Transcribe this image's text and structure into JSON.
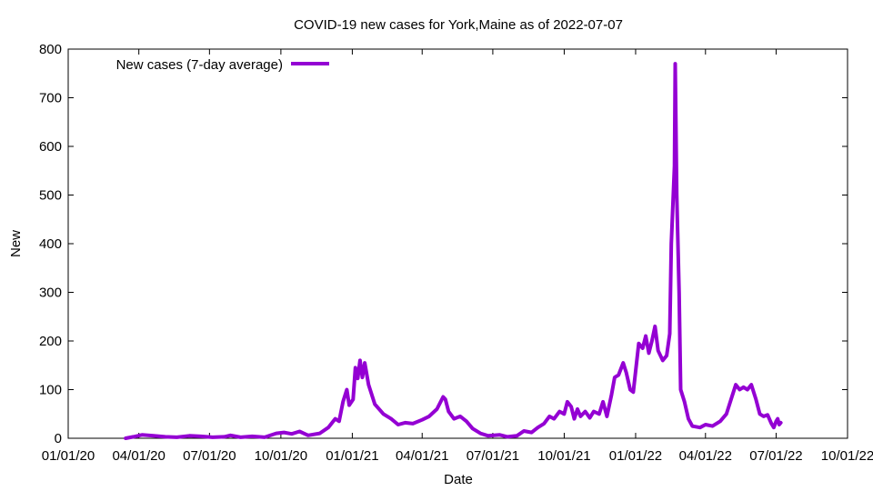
{
  "chart_data": {
    "type": "line",
    "title": "COVID-19 new cases for York,Maine as of 2022-07-07",
    "xlabel": "Date",
    "ylabel": "New",
    "xlim": [
      "2020-01-01",
      "2022-10-01"
    ],
    "ylim": [
      0,
      800
    ],
    "x_ticks": [
      "01/01/20",
      "04/01/20",
      "07/01/20",
      "10/01/20",
      "01/01/21",
      "04/01/21",
      "07/01/21",
      "10/01/21",
      "01/01/22",
      "04/01/22",
      "07/01/22",
      "10/01/22"
    ],
    "y_ticks": [
      0,
      100,
      200,
      300,
      400,
      500,
      600,
      700,
      800
    ],
    "grid": false,
    "legend_position": "top-left",
    "series": [
      {
        "name": "New cases (7-day average)",
        "color": "#9400d3",
        "points": [
          [
            "2020-03-15",
            0
          ],
          [
            "2020-03-25",
            3
          ],
          [
            "2020-04-05",
            7
          ],
          [
            "2020-04-20",
            5
          ],
          [
            "2020-05-05",
            3
          ],
          [
            "2020-05-20",
            2
          ],
          [
            "2020-06-05",
            5
          ],
          [
            "2020-06-20",
            4
          ],
          [
            "2020-07-05",
            2
          ],
          [
            "2020-07-20",
            3
          ],
          [
            "2020-07-28",
            6
          ],
          [
            "2020-08-10",
            2
          ],
          [
            "2020-08-25",
            4
          ],
          [
            "2020-09-10",
            2
          ],
          [
            "2020-09-25",
            10
          ],
          [
            "2020-10-05",
            12
          ],
          [
            "2020-10-15",
            9
          ],
          [
            "2020-10-25",
            14
          ],
          [
            "2020-11-05",
            6
          ],
          [
            "2020-11-20",
            10
          ],
          [
            "2020-12-01",
            22
          ],
          [
            "2020-12-10",
            40
          ],
          [
            "2020-12-15",
            35
          ],
          [
            "2020-12-20",
            75
          ],
          [
            "2020-12-25",
            100
          ],
          [
            "2020-12-28",
            68
          ],
          [
            "2021-01-02",
            80
          ],
          [
            "2021-01-05",
            145
          ],
          [
            "2021-01-08",
            123
          ],
          [
            "2021-01-11",
            160
          ],
          [
            "2021-01-14",
            125
          ],
          [
            "2021-01-17",
            155
          ],
          [
            "2021-01-22",
            110
          ],
          [
            "2021-01-30",
            70
          ],
          [
            "2021-02-10",
            50
          ],
          [
            "2021-02-20",
            40
          ],
          [
            "2021-03-01",
            28
          ],
          [
            "2021-03-10",
            32
          ],
          [
            "2021-03-20",
            30
          ],
          [
            "2021-04-01",
            38
          ],
          [
            "2021-04-10",
            45
          ],
          [
            "2021-04-20",
            60
          ],
          [
            "2021-04-28",
            85
          ],
          [
            "2021-05-01",
            80
          ],
          [
            "2021-05-05",
            55
          ],
          [
            "2021-05-12",
            40
          ],
          [
            "2021-05-20",
            45
          ],
          [
            "2021-05-28",
            35
          ],
          [
            "2021-06-05",
            20
          ],
          [
            "2021-06-15",
            10
          ],
          [
            "2021-06-25",
            5
          ],
          [
            "2021-07-10",
            7
          ],
          [
            "2021-07-20",
            3
          ],
          [
            "2021-08-01",
            5
          ],
          [
            "2021-08-10",
            15
          ],
          [
            "2021-08-20",
            12
          ],
          [
            "2021-08-28",
            22
          ],
          [
            "2021-09-05",
            30
          ],
          [
            "2021-09-12",
            45
          ],
          [
            "2021-09-18",
            40
          ],
          [
            "2021-09-25",
            55
          ],
          [
            "2021-10-01",
            50
          ],
          [
            "2021-10-05",
            75
          ],
          [
            "2021-10-10",
            65
          ],
          [
            "2021-10-14",
            40
          ],
          [
            "2021-10-18",
            60
          ],
          [
            "2021-10-22",
            45
          ],
          [
            "2021-10-28",
            55
          ],
          [
            "2021-11-03",
            42
          ],
          [
            "2021-11-08",
            55
          ],
          [
            "2021-11-15",
            50
          ],
          [
            "2021-11-20",
            75
          ],
          [
            "2021-11-25",
            45
          ],
          [
            "2021-12-01",
            90
          ],
          [
            "2021-12-05",
            125
          ],
          [
            "2021-12-10",
            130
          ],
          [
            "2021-12-16",
            155
          ],
          [
            "2021-12-20",
            135
          ],
          [
            "2021-12-25",
            100
          ],
          [
            "2021-12-29",
            95
          ],
          [
            "2022-01-05",
            195
          ],
          [
            "2022-01-10",
            185
          ],
          [
            "2022-01-14",
            210
          ],
          [
            "2022-01-18",
            175
          ],
          [
            "2022-01-22",
            200
          ],
          [
            "2022-01-26",
            230
          ],
          [
            "2022-01-30",
            180
          ],
          [
            "2022-02-05",
            160
          ],
          [
            "2022-02-10",
            170
          ],
          [
            "2022-02-14",
            215
          ],
          [
            "2022-02-16",
            400
          ],
          [
            "2022-02-20",
            560
          ],
          [
            "2022-02-21",
            770
          ],
          [
            "2022-02-23",
            500
          ],
          [
            "2022-02-26",
            300
          ],
          [
            "2022-02-28",
            100
          ],
          [
            "2022-03-05",
            75
          ],
          [
            "2022-03-10",
            40
          ],
          [
            "2022-03-15",
            25
          ],
          [
            "2022-03-25",
            22
          ],
          [
            "2022-04-01",
            28
          ],
          [
            "2022-04-10",
            25
          ],
          [
            "2022-04-20",
            35
          ],
          [
            "2022-04-28",
            50
          ],
          [
            "2022-05-05",
            85
          ],
          [
            "2022-05-10",
            110
          ],
          [
            "2022-05-15",
            100
          ],
          [
            "2022-05-20",
            105
          ],
          [
            "2022-05-25",
            100
          ],
          [
            "2022-05-30",
            110
          ],
          [
            "2022-06-05",
            80
          ],
          [
            "2022-06-10",
            50
          ],
          [
            "2022-06-15",
            45
          ],
          [
            "2022-06-20",
            48
          ],
          [
            "2022-06-25",
            30
          ],
          [
            "2022-06-28",
            22
          ],
          [
            "2022-07-01",
            35
          ],
          [
            "2022-07-03",
            40
          ],
          [
            "2022-07-05",
            28
          ],
          [
            "2022-07-07",
            32
          ]
        ]
      }
    ]
  }
}
